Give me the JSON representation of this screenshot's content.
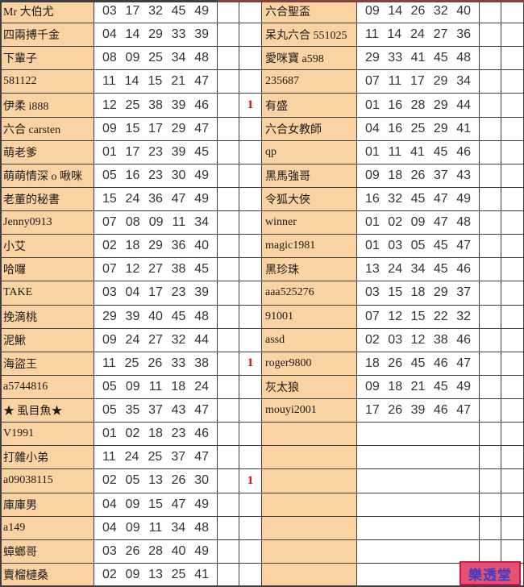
{
  "colors": {
    "cell_line": "#3E3E3E",
    "name_bg": "#FBD2A2",
    "name_text": "#1A1A1A",
    "number_text": "#333333",
    "flag_red": "#E10000",
    "top_strip_left": "#3E3E3E",
    "top_strip_right": "#7F443C",
    "badge_bg": "#E75073",
    "badge_border": "#C81946",
    "badge_text": "#3C3CC8"
  },
  "badge": {
    "label": "樂透堂"
  },
  "rows": [
    {
      "left": {
        "name": "Mr 大伯尤",
        "nums": [
          "03",
          "17",
          "32",
          "45",
          "49"
        ],
        "flag": ""
      },
      "right": {
        "name": "六合聖盃",
        "nums": [
          "09",
          "14",
          "26",
          "32",
          "40"
        ],
        "flag": ""
      }
    },
    {
      "left": {
        "name": "四兩搏千金",
        "nums": [
          "04",
          "14",
          "29",
          "33",
          "39"
        ],
        "flag": ""
      },
      "right": {
        "name": "呆丸六合 551025",
        "nums": [
          "11",
          "14",
          "24",
          "27",
          "36"
        ],
        "flag": ""
      }
    },
    {
      "left": {
        "name": "下輩子",
        "nums": [
          "08",
          "09",
          "25",
          "34",
          "48"
        ],
        "flag": ""
      },
      "right": {
        "name": "愛咪寶 a598",
        "nums": [
          "29",
          "33",
          "41",
          "45",
          "48"
        ],
        "flag": ""
      }
    },
    {
      "left": {
        "name": "581122",
        "nums": [
          "11",
          "14",
          "15",
          "21",
          "47"
        ],
        "flag": ""
      },
      "right": {
        "name": "235687",
        "nums": [
          "07",
          "11",
          "17",
          "29",
          "34"
        ],
        "flag": ""
      }
    },
    {
      "left": {
        "name": "伊柔 i888",
        "nums": [
          "12",
          "25",
          "38",
          "39",
          "46"
        ],
        "flag": "1"
      },
      "right": {
        "name": "有盛",
        "nums": [
          "01",
          "16",
          "28",
          "29",
          "44"
        ],
        "flag": ""
      }
    },
    {
      "left": {
        "name": "六合 carsten",
        "nums": [
          "09",
          "15",
          "17",
          "29",
          "47"
        ],
        "flag": ""
      },
      "right": {
        "name": "六合女教師",
        "nums": [
          "04",
          "16",
          "25",
          "29",
          "41"
        ],
        "flag": ""
      }
    },
    {
      "left": {
        "name": "萌老爹",
        "nums": [
          "01",
          "17",
          "23",
          "39",
          "45"
        ],
        "flag": ""
      },
      "right": {
        "name": "qp",
        "nums": [
          "01",
          "11",
          "41",
          "45",
          "46"
        ],
        "flag": ""
      }
    },
    {
      "left": {
        "name": "萌萌情深 o 啾咪",
        "nums": [
          "05",
          "16",
          "23",
          "30",
          "49"
        ],
        "flag": ""
      },
      "right": {
        "name": "黑馬強哥",
        "nums": [
          "09",
          "18",
          "26",
          "37",
          "43"
        ],
        "flag": ""
      }
    },
    {
      "left": {
        "name": "老董的秘書",
        "nums": [
          "15",
          "24",
          "36",
          "47",
          "49"
        ],
        "flag": ""
      },
      "right": {
        "name": "令狐大俠",
        "nums": [
          "16",
          "32",
          "45",
          "47",
          "49"
        ],
        "flag": ""
      }
    },
    {
      "left": {
        "name": "Jenny0913",
        "nums": [
          "07",
          "08",
          "09",
          "11",
          "34"
        ],
        "flag": ""
      },
      "right": {
        "name": "winner",
        "nums": [
          "01",
          "02",
          "09",
          "47",
          "48"
        ],
        "flag": ""
      }
    },
    {
      "left": {
        "name": "小艾",
        "nums": [
          "02",
          "18",
          "29",
          "36",
          "40"
        ],
        "flag": ""
      },
      "right": {
        "name": "magic1981",
        "nums": [
          "01",
          "03",
          "05",
          "45",
          "47"
        ],
        "flag": ""
      }
    },
    {
      "left": {
        "name": "哈囉",
        "nums": [
          "07",
          "12",
          "27",
          "38",
          "45"
        ],
        "flag": ""
      },
      "right": {
        "name": "黑珍珠",
        "nums": [
          "13",
          "24",
          "34",
          "45",
          "46"
        ],
        "flag": ""
      }
    },
    {
      "left": {
        "name": "TAKE",
        "nums": [
          "03",
          "04",
          "17",
          "23",
          "39"
        ],
        "flag": ""
      },
      "right": {
        "name": "aaa525276",
        "nums": [
          "03",
          "15",
          "18",
          "29",
          "37"
        ],
        "flag": ""
      }
    },
    {
      "left": {
        "name": "挽滴桃",
        "nums": [
          "29",
          "39",
          "40",
          "45",
          "48"
        ],
        "flag": ""
      },
      "right": {
        "name": "91001",
        "nums": [
          "07",
          "12",
          "15",
          "22",
          "32"
        ],
        "flag": ""
      }
    },
    {
      "left": {
        "name": "泥鰍",
        "nums": [
          "09",
          "24",
          "27",
          "32",
          "44"
        ],
        "flag": ""
      },
      "right": {
        "name": "assd",
        "nums": [
          "02",
          "03",
          "12",
          "38",
          "46"
        ],
        "flag": ""
      }
    },
    {
      "left": {
        "name": "海盜王",
        "nums": [
          "11",
          "25",
          "26",
          "33",
          "38"
        ],
        "flag": "1"
      },
      "right": {
        "name": "roger9800",
        "nums": [
          "18",
          "26",
          "45",
          "46",
          "47"
        ],
        "flag": ""
      }
    },
    {
      "left": {
        "name": "a5744816",
        "nums": [
          "05",
          "09",
          "11",
          "18",
          "24"
        ],
        "flag": ""
      },
      "right": {
        "name": "灰太狼",
        "nums": [
          "09",
          "18",
          "21",
          "45",
          "49"
        ],
        "flag": ""
      }
    },
    {
      "left": {
        "name": "★ 虱目魚★",
        "nums": [
          "05",
          "35",
          "37",
          "43",
          "47"
        ],
        "flag": ""
      },
      "right": {
        "name": "mouyi2001",
        "nums": [
          "17",
          "26",
          "39",
          "46",
          "47"
        ],
        "flag": ""
      }
    },
    {
      "left": {
        "name": "V1991",
        "nums": [
          "01",
          "02",
          "18",
          "23",
          "46"
        ],
        "flag": ""
      },
      "right": {
        "name": "",
        "nums": [],
        "flag": ""
      }
    },
    {
      "left": {
        "name": "打雜小弟",
        "nums": [
          "11",
          "24",
          "25",
          "37",
          "47"
        ],
        "flag": ""
      },
      "right": {
        "name": "",
        "nums": [],
        "flag": ""
      }
    },
    {
      "left": {
        "name": "a09038115",
        "nums": [
          "02",
          "05",
          "13",
          "26",
          "30"
        ],
        "flag": "1"
      },
      "right": {
        "name": "",
        "nums": [],
        "flag": ""
      }
    },
    {
      "left": {
        "name": "庫庫男",
        "nums": [
          "04",
          "09",
          "15",
          "47",
          "49"
        ],
        "flag": ""
      },
      "right": {
        "name": "",
        "nums": [],
        "flag": ""
      }
    },
    {
      "left": {
        "name": "a149",
        "nums": [
          "04",
          "09",
          "11",
          "34",
          "48"
        ],
        "flag": ""
      },
      "right": {
        "name": "",
        "nums": [],
        "flag": ""
      }
    },
    {
      "left": {
        "name": "蟑螂哥",
        "nums": [
          "03",
          "26",
          "28",
          "40",
          "49"
        ],
        "flag": ""
      },
      "right": {
        "name": "",
        "nums": [],
        "flag": ""
      }
    },
    {
      "left": {
        "name": "賣榴槤桑",
        "nums": [
          "02",
          "09",
          "13",
          "25",
          "41"
        ],
        "flag": ""
      },
      "right": {
        "name": "",
        "nums": [],
        "flag": ""
      }
    }
  ]
}
